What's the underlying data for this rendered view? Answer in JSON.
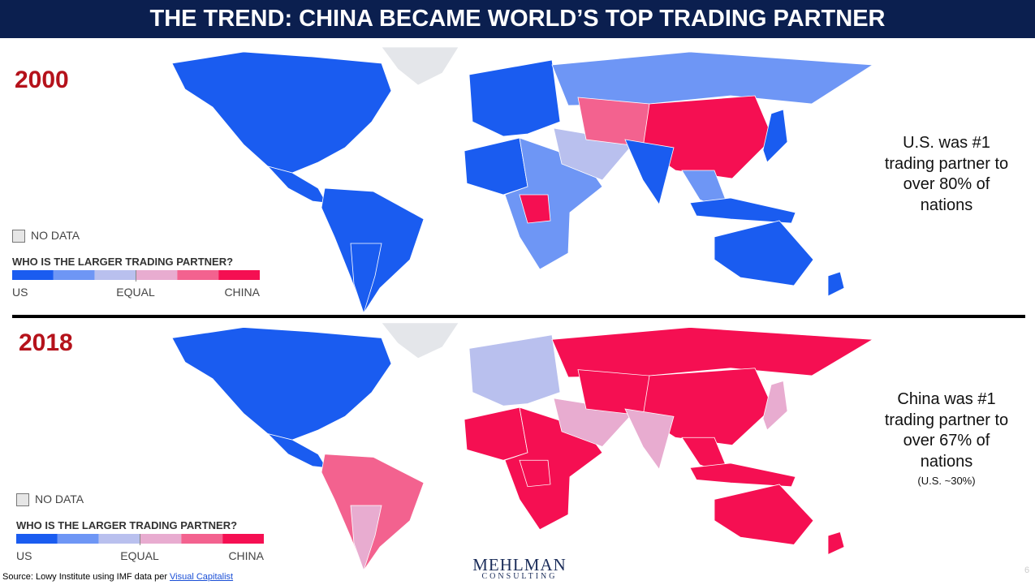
{
  "header": {
    "title": "THE TREND: CHINA BECAME WORLD’S TOP TRADING PARTNER"
  },
  "panels": [
    {
      "year": "2000",
      "legend": {
        "no_data": "NO DATA",
        "title": "WHO IS THE LARGER TRADING PARTNER?",
        "labels": [
          "US",
          "EQUAL",
          "CHINA"
        ]
      },
      "note": [
        "U.S. was #1",
        "trading partner to",
        "over 80% of",
        "nations"
      ]
    },
    {
      "year": "2018",
      "legend": {
        "no_data": "NO DATA",
        "title": "WHO IS THE LARGER TRADING PARTNER?",
        "labels": [
          "US",
          "EQUAL",
          "CHINA"
        ]
      },
      "note": [
        "China was #1",
        "trading partner to",
        "over 67% of",
        "nations"
      ],
      "subnote": "(U.S. ~30%)"
    }
  ],
  "footer": {
    "source": "Source: Lowy Institute using IMF data per ",
    "source_link": "Visual Capitalist",
    "logo": {
      "name": "MEHLMAN",
      "sub": "CONSULTING"
    },
    "page_number": "6"
  }
}
